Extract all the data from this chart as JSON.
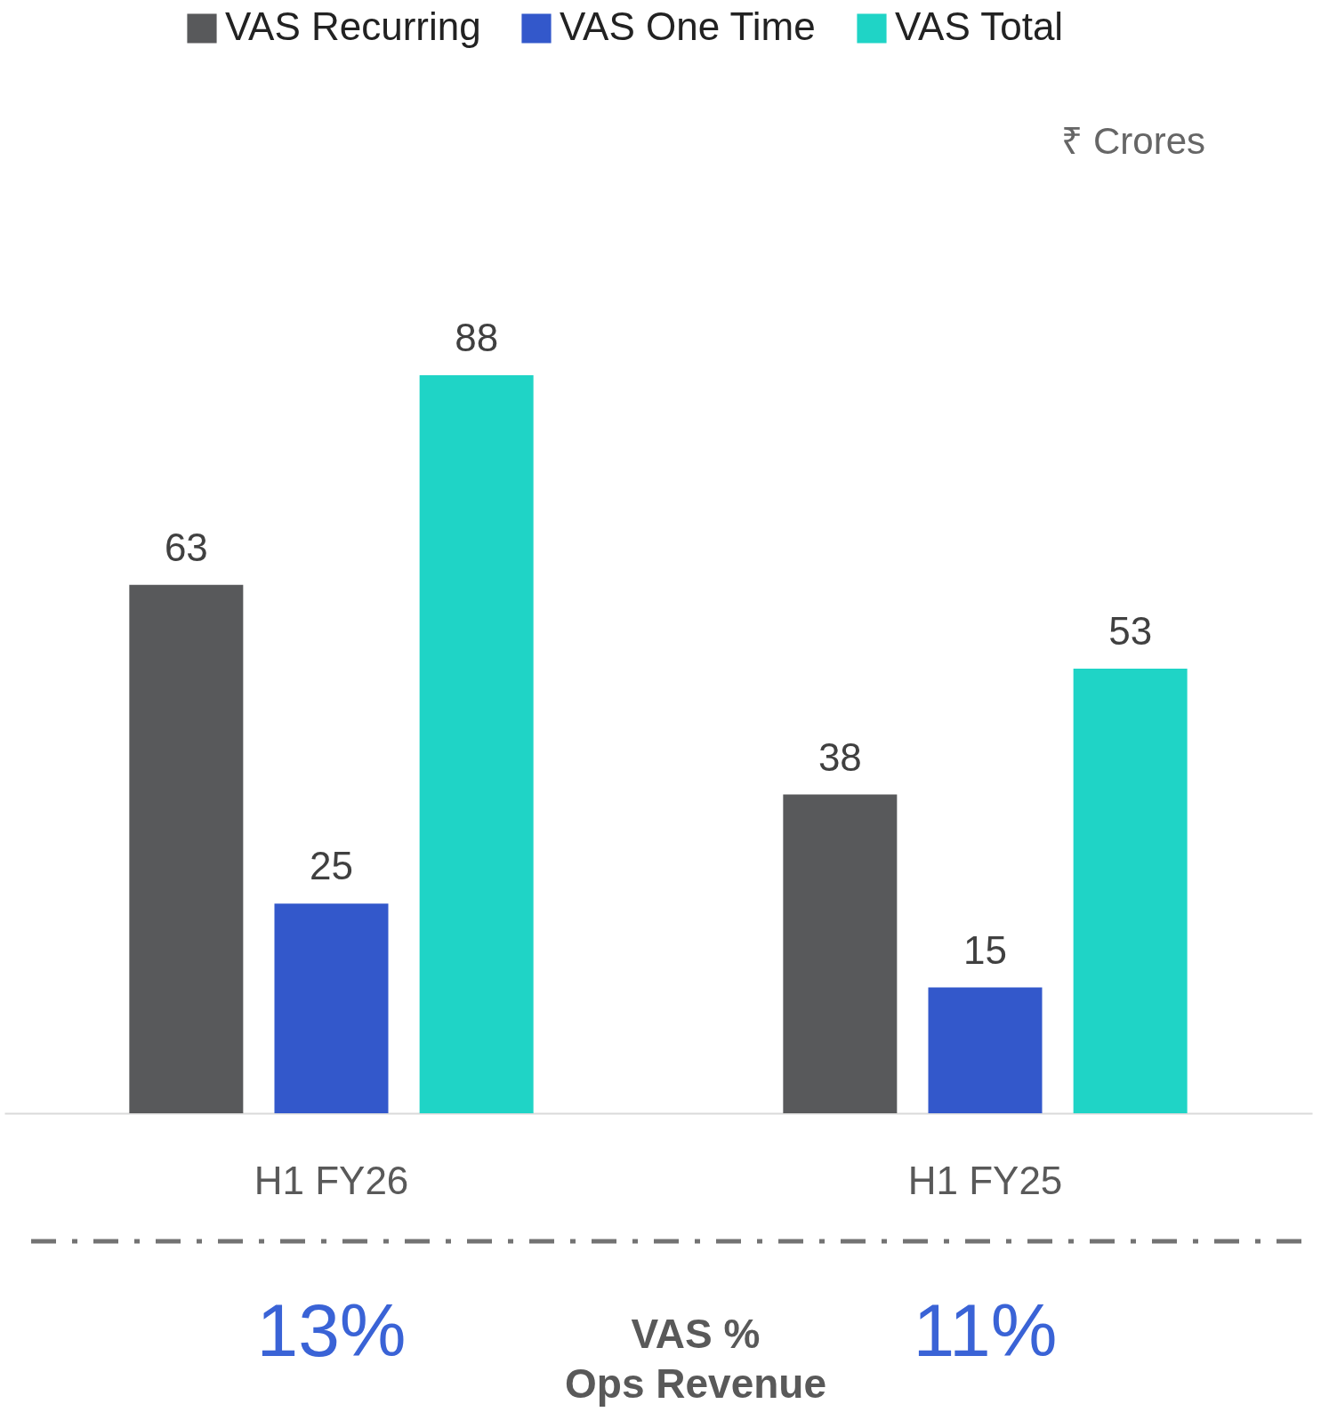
{
  "chart_data": {
    "type": "bar",
    "categories": [
      "H1 FY26",
      "H1 FY25"
    ],
    "series": [
      {
        "name": "VAS Recurring",
        "color": "#58595b",
        "values": [
          63,
          38
        ]
      },
      {
        "name": "VAS One Time",
        "color": "#3358cb",
        "values": [
          25,
          15
        ]
      },
      {
        "name": "VAS Total",
        "color": "#1fd4c6",
        "values": [
          88,
          53
        ]
      }
    ],
    "data_labels": true,
    "legend": "top",
    "grid": false,
    "annotations": [
      "₹ Crores",
      "13%",
      "VAS %\nOps Revenue",
      "11%"
    ]
  }
}
